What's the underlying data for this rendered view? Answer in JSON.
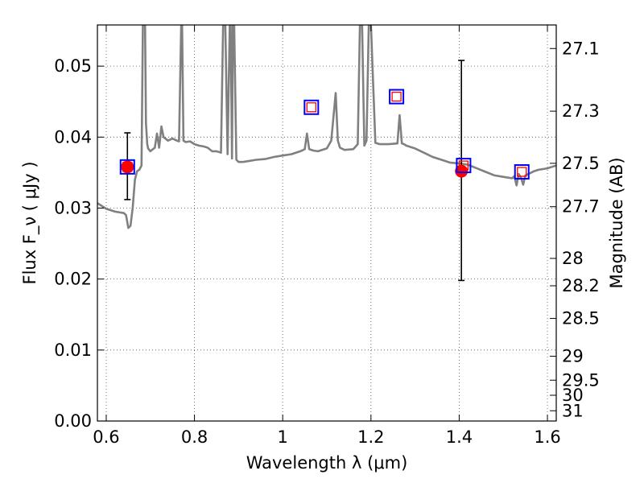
{
  "chart_data": {
    "type": "line",
    "xlabel": "Wavelength  λ (μm)",
    "ylabel": "Flux  F_ν  ( μJy )",
    "y2label": "Magnitude (AB)",
    "xlim": [
      0.58,
      1.62
    ],
    "ylim": [
      0.0,
      0.0558
    ],
    "grid": true,
    "xticks": [
      0.6,
      0.8,
      1.0,
      1.2,
      1.4,
      1.6
    ],
    "xtick_labels": [
      "0.6",
      "0.8",
      "1",
      "1.2",
      "1.4",
      "1.6"
    ],
    "yticks": [
      0.0,
      0.01,
      0.02,
      0.03,
      0.04,
      0.05
    ],
    "ytick_labels": [
      "0.00",
      "0.01",
      "0.02",
      "0.03",
      "0.04",
      "0.05"
    ],
    "y2ticks": [
      27.1,
      27.3,
      27.5,
      27.7,
      28,
      28.2,
      28.5,
      29,
      29.5,
      30,
      31
    ],
    "y2tick_labels": [
      "27.1",
      "27.3",
      "27.5",
      "27.7",
      "28",
      "28.2",
      "28.5",
      "29",
      "29.5",
      "30",
      "31"
    ],
    "colors": {
      "model": "#808080",
      "observed": "#ff0000",
      "model_box": "#0000ff",
      "model_inner": "#ff0000",
      "errorbar": "#000000",
      "grid": "#555555"
    },
    "series": [
      {
        "kind": "model_spectrum",
        "color": "#808080",
        "x": [
          0.58,
          0.6,
          0.62,
          0.64,
          0.645,
          0.65,
          0.655,
          0.66,
          0.665,
          0.67,
          0.675,
          0.68,
          0.683,
          0.685,
          0.688,
          0.69,
          0.693,
          0.695,
          0.7,
          0.71,
          0.715,
          0.72,
          0.725,
          0.73,
          0.74,
          0.75,
          0.76,
          0.765,
          0.77,
          0.772,
          0.775,
          0.78,
          0.79,
          0.8,
          0.81,
          0.82,
          0.83,
          0.84,
          0.85,
          0.86,
          0.865,
          0.87,
          0.875,
          0.88,
          0.882,
          0.885,
          0.887,
          0.89,
          0.895,
          0.9,
          0.91,
          0.92,
          0.94,
          0.96,
          0.98,
          1.0,
          1.02,
          1.04,
          1.05,
          1.055,
          1.06,
          1.07,
          1.08,
          1.1,
          1.11,
          1.12,
          1.125,
          1.13,
          1.14,
          1.16,
          1.17,
          1.175,
          1.18,
          1.185,
          1.19,
          1.195,
          1.2,
          1.21,
          1.22,
          1.24,
          1.26,
          1.265,
          1.27,
          1.275,
          1.28,
          1.3,
          1.32,
          1.34,
          1.36,
          1.38,
          1.4,
          1.42,
          1.44,
          1.46,
          1.48,
          1.5,
          1.52,
          1.525,
          1.53,
          1.535,
          1.54,
          1.545,
          1.55,
          1.56,
          1.57,
          1.58,
          1.6,
          1.61,
          1.62
        ],
        "y": [
          0.0307,
          0.0299,
          0.0295,
          0.0293,
          0.029,
          0.0272,
          0.0275,
          0.03,
          0.034,
          0.0352,
          0.0354,
          0.036,
          0.0558,
          0.0558,
          0.0558,
          0.042,
          0.039,
          0.0384,
          0.038,
          0.0385,
          0.0405,
          0.0385,
          0.0415,
          0.04,
          0.0395,
          0.0398,
          0.0395,
          0.0394,
          0.0558,
          0.0558,
          0.0395,
          0.0393,
          0.0394,
          0.039,
          0.0388,
          0.0387,
          0.0385,
          0.038,
          0.038,
          0.0378,
          0.0558,
          0.0558,
          0.0376,
          0.0558,
          0.0558,
          0.037,
          0.0558,
          0.0558,
          0.0368,
          0.0365,
          0.0365,
          0.0366,
          0.0368,
          0.0369,
          0.0372,
          0.0374,
          0.0376,
          0.038,
          0.0383,
          0.0405,
          0.0383,
          0.0381,
          0.038,
          0.0384,
          0.0395,
          0.0462,
          0.0395,
          0.0385,
          0.0382,
          0.0383,
          0.039,
          0.0558,
          0.0558,
          0.0388,
          0.0395,
          0.0558,
          0.0558,
          0.0392,
          0.039,
          0.039,
          0.0391,
          0.0431,
          0.0391,
          0.039,
          0.0388,
          0.0384,
          0.0378,
          0.0372,
          0.0368,
          0.0364,
          0.0363,
          0.0361,
          0.0356,
          0.0351,
          0.0346,
          0.0344,
          0.0342,
          0.0345,
          0.0332,
          0.0348,
          0.0343,
          0.0333,
          0.0346,
          0.0349,
          0.0352,
          0.0354,
          0.0356,
          0.0358,
          0.036
        ]
      },
      {
        "kind": "observed_photometry",
        "color": "#ff0000",
        "x": [
          0.648,
          1.405
        ],
        "y": [
          0.0358,
          0.0352
        ],
        "yerr_low": [
          0.0046,
          0.0154
        ],
        "yerr_high": [
          0.0048,
          0.0156
        ]
      },
      {
        "kind": "model_photometry",
        "box_color": "#0000ff",
        "inner_color": "#ff0000",
        "x": [
          0.648,
          1.065,
          1.258,
          1.41,
          1.542
        ],
        "y": [
          0.0358,
          0.0442,
          0.0457,
          0.036,
          0.0351
        ]
      }
    ]
  }
}
